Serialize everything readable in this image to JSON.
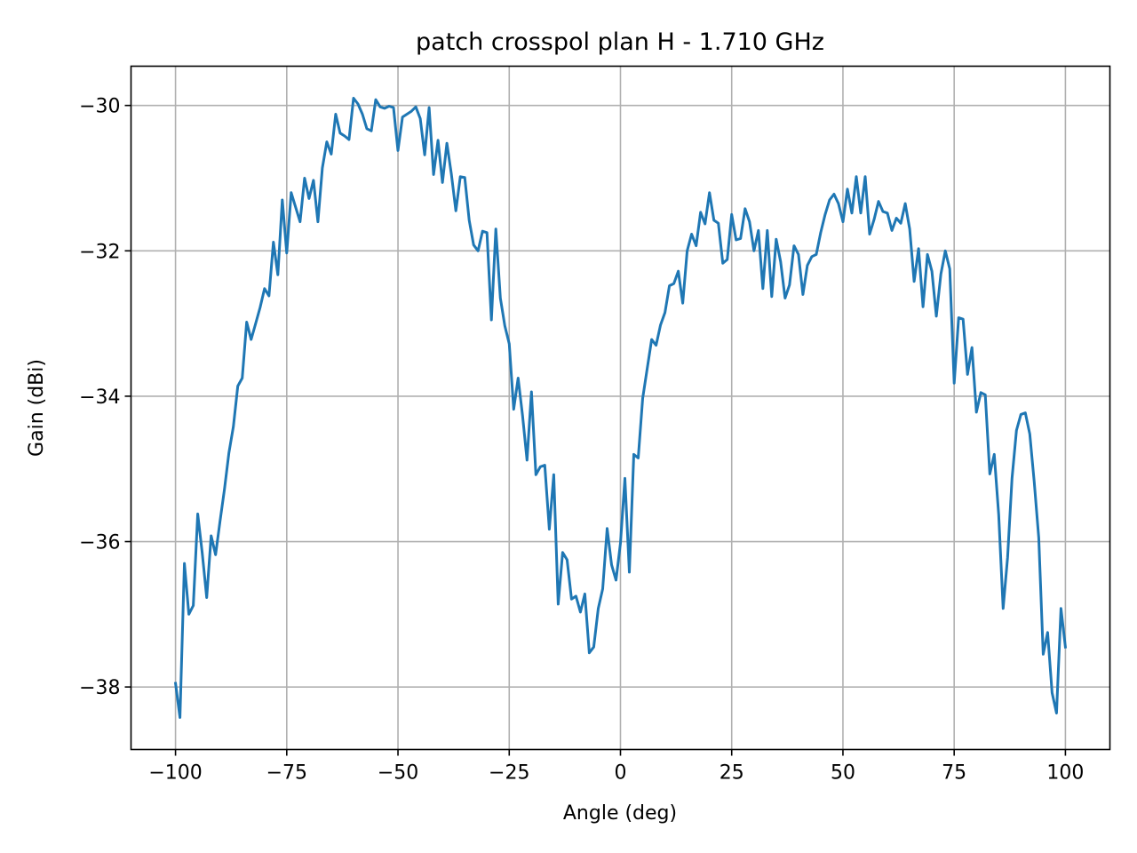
{
  "chart_data": {
    "type": "line",
    "title": "patch crosspol plan H - 1.710 GHz",
    "xlabel": "Angle (deg)",
    "ylabel": "Gain (dBi)",
    "xlim": [
      -110,
      110
    ],
    "ylim": [
      -38.86,
      -29.46
    ],
    "xticks": [
      -100,
      -75,
      -50,
      -25,
      0,
      25,
      50,
      75,
      100
    ],
    "xtick_labels": [
      "−100",
      "−75",
      "−50",
      "−25",
      "0",
      "25",
      "50",
      "75",
      "100"
    ],
    "yticks": [
      -38,
      -36,
      -34,
      -32,
      -30
    ],
    "ytick_labels": [
      "−38",
      "−36",
      "−34",
      "−32",
      "−30"
    ],
    "grid": true,
    "color": "#1f77b4",
    "series": [
      {
        "x": [
          -100,
          -99,
          -98,
          -97,
          -96,
          -95,
          -94,
          -93,
          -92,
          -91,
          -90,
          -89,
          -88,
          -87,
          -86,
          -85,
          -84,
          -83,
          -82,
          -81,
          -80,
          -79,
          -78,
          -77,
          -76,
          -75,
          -74,
          -73,
          -72,
          -71,
          -70,
          -69,
          -68,
          -67,
          -66,
          -65,
          -64,
          -63,
          -62,
          -61,
          -60,
          -59,
          -58,
          -57,
          -56,
          -55,
          -54,
          -53,
          -52,
          -51,
          -50,
          -49,
          -48,
          -47,
          -46,
          -45,
          -44,
          -43,
          -42,
          -41,
          -40,
          -39,
          -38,
          -37,
          -36,
          -35,
          -34,
          -33,
          -32,
          -31,
          -30,
          -29,
          -28,
          -27,
          -26,
          -25,
          -24,
          -23,
          -22,
          -21,
          -20,
          -19,
          -18,
          -17,
          -16,
          -15,
          -14,
          -13,
          -12,
          -11,
          -10,
          -9,
          -8,
          -7,
          -6,
          -5,
          -4,
          -3,
          -2,
          -1,
          0,
          1,
          2,
          3,
          4,
          5,
          6,
          7,
          8,
          9,
          10,
          11,
          12,
          13,
          14,
          15,
          16,
          17,
          18,
          19,
          20,
          21,
          22,
          23,
          24,
          25,
          26,
          27,
          28,
          29,
          30,
          31,
          32,
          33,
          34,
          35,
          36,
          37,
          38,
          39,
          40,
          41,
          42,
          43,
          44,
          45,
          46,
          47,
          48,
          49,
          50,
          51,
          52,
          53,
          54,
          55,
          56,
          57,
          58,
          59,
          60,
          61,
          62,
          63,
          64,
          65,
          66,
          67,
          68,
          69,
          70,
          71,
          72,
          73,
          74,
          75,
          76,
          77,
          78,
          79,
          80,
          81,
          82,
          83,
          84,
          85,
          86,
          87,
          88,
          89,
          90,
          91,
          92,
          93,
          94,
          95,
          96,
          97,
          98,
          99,
          100
        ],
        "y": [
          -37.95,
          -38.42,
          -36.3,
          -37.0,
          -36.88,
          -35.62,
          -36.15,
          -36.77,
          -35.92,
          -36.18,
          -35.72,
          -35.28,
          -34.78,
          -34.42,
          -33.86,
          -33.75,
          -32.98,
          -33.22,
          -33.0,
          -32.78,
          -32.52,
          -32.62,
          -31.88,
          -32.33,
          -31.3,
          -32.03,
          -31.2,
          -31.4,
          -31.6,
          -31.0,
          -31.28,
          -31.03,
          -31.6,
          -30.86,
          -30.5,
          -30.67,
          -30.12,
          -30.38,
          -30.42,
          -30.47,
          -29.9,
          -29.98,
          -30.12,
          -30.32,
          -30.35,
          -29.92,
          -30.02,
          -30.04,
          -30.01,
          -30.03,
          -30.62,
          -30.16,
          -30.12,
          -30.08,
          -30.02,
          -30.18,
          -30.68,
          -30.03,
          -30.95,
          -30.48,
          -31.06,
          -30.52,
          -30.95,
          -31.45,
          -30.98,
          -30.99,
          -31.58,
          -31.92,
          -32.0,
          -31.73,
          -31.75,
          -32.95,
          -31.7,
          -32.65,
          -33.03,
          -33.28,
          -34.18,
          -33.75,
          -34.27,
          -34.88,
          -33.94,
          -35.08,
          -34.97,
          -34.95,
          -35.83,
          -35.08,
          -36.86,
          -36.15,
          -36.25,
          -36.79,
          -36.75,
          -36.97,
          -36.72,
          -37.53,
          -37.45,
          -36.92,
          -36.65,
          -35.82,
          -36.32,
          -36.53,
          -36.02,
          -35.13,
          -36.42,
          -34.8,
          -34.85,
          -34.03,
          -33.62,
          -33.22,
          -33.3,
          -33.02,
          -32.85,
          -32.48,
          -32.45,
          -32.28,
          -32.72,
          -32.0,
          -31.77,
          -31.93,
          -31.47,
          -31.63,
          -31.2,
          -31.58,
          -31.62,
          -32.17,
          -32.12,
          -31.5,
          -31.85,
          -31.83,
          -31.42,
          -31.6,
          -32.0,
          -31.72,
          -32.52,
          -31.72,
          -32.63,
          -31.84,
          -32.15,
          -32.65,
          -32.47,
          -31.93,
          -32.05,
          -32.6,
          -32.2,
          -32.08,
          -32.05,
          -31.75,
          -31.5,
          -31.3,
          -31.22,
          -31.35,
          -31.6,
          -31.15,
          -31.48,
          -30.98,
          -31.48,
          -30.98,
          -31.77,
          -31.57,
          -31.32,
          -31.46,
          -31.48,
          -31.72,
          -31.55,
          -31.62,
          -31.35,
          -31.7,
          -32.42,
          -31.97,
          -32.77,
          -32.05,
          -32.28,
          -32.9,
          -32.32,
          -32.0,
          -32.25,
          -33.82,
          -32.92,
          -32.94,
          -33.7,
          -33.33,
          -34.22,
          -33.95,
          -33.98,
          -35.07,
          -34.8,
          -35.63,
          -36.92,
          -36.22,
          -35.13,
          -34.47,
          -34.25,
          -34.23,
          -34.52,
          -35.18,
          -35.95,
          -37.55,
          -37.25,
          -38.08,
          -38.36,
          -36.92,
          -37.45
        ]
      }
    ]
  }
}
